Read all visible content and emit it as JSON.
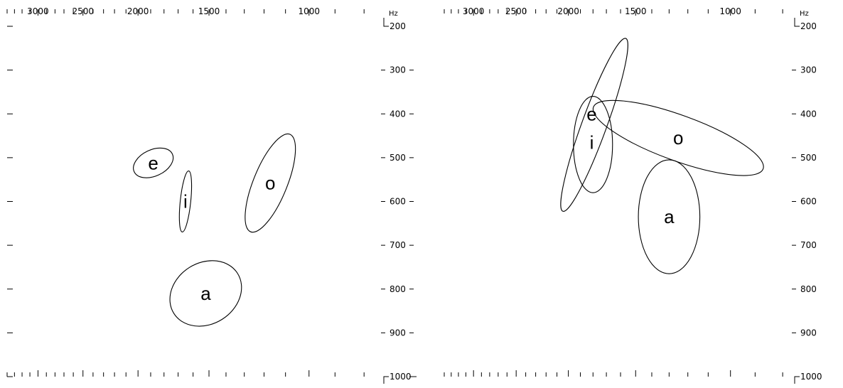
{
  "chart_data": [
    {
      "type": "scatter",
      "panel": "left",
      "x_axis": {
        "scale": "log",
        "reversed": true,
        "range_hz": [
          3400,
          760
        ],
        "tick_labels": [
          "3000",
          "2500",
          "2000",
          "1500",
          "1000"
        ],
        "tick_values": [
          3000,
          2500,
          2000,
          1500,
          1000
        ]
      },
      "y_axis": {
        "unit": "Hz",
        "range_hz": [
          200,
          1000
        ],
        "tick_labels": [
          "200",
          "300",
          "400",
          "500",
          "600",
          "700",
          "800",
          "900",
          "1000"
        ],
        "tick_values": [
          200,
          300,
          400,
          500,
          600,
          700,
          800,
          900,
          1000
        ]
      },
      "series": [
        {
          "name": "e",
          "f2": 1880,
          "f1": 512,
          "f2_spread": 160,
          "f1_spread": 30,
          "tilt": -25
        },
        {
          "name": "i",
          "f2": 1650,
          "f1": 600,
          "f2_spread": 35,
          "f1_spread": 70,
          "tilt": 6
        },
        {
          "name": "o",
          "f2": 1170,
          "f1": 558,
          "f2_spread": 80,
          "f1_spread": 120,
          "tilt": 22
        },
        {
          "name": "a",
          "f2": 1520,
          "f1": 810,
          "f2_spread": 230,
          "f1_spread": 70,
          "tilt": -32
        }
      ]
    },
    {
      "type": "scatter",
      "panel": "right",
      "x_axis": {
        "scale": "log",
        "reversed": true,
        "range_hz": [
          3400,
          760
        ],
        "tick_labels": [
          "3000",
          "2500",
          "2000",
          "1500",
          "1000"
        ],
        "tick_values": [
          3000,
          2500,
          2000,
          1500,
          1000
        ]
      },
      "y_axis": {
        "unit": "Hz",
        "range_hz": [
          200,
          1000
        ],
        "tick_labels": [
          "200",
          "300",
          "400",
          "500",
          "600",
          "700",
          "800",
          "900",
          "1000"
        ],
        "tick_values": [
          200,
          300,
          400,
          500,
          600,
          700,
          800,
          900,
          1000
        ]
      },
      "series": [
        {
          "name": "e",
          "f2": 1790,
          "f1": 425,
          "f2_spread": 95,
          "f1_spread": 210,
          "tilt": 20
        },
        {
          "name": "i",
          "f2": 1800,
          "f1": 470,
          "f2_spread": 150,
          "f1_spread": 110,
          "tilt": 0
        },
        {
          "name": "o",
          "f2": 1250,
          "f1": 455,
          "f2_spread": 460,
          "f1_spread": 52,
          "tilt": 20
        },
        {
          "name": "a",
          "f2": 1300,
          "f1": 635,
          "f2_spread": 170,
          "f1_spread": 130,
          "tilt": 0
        }
      ]
    }
  ],
  "unit_label": "Hz"
}
